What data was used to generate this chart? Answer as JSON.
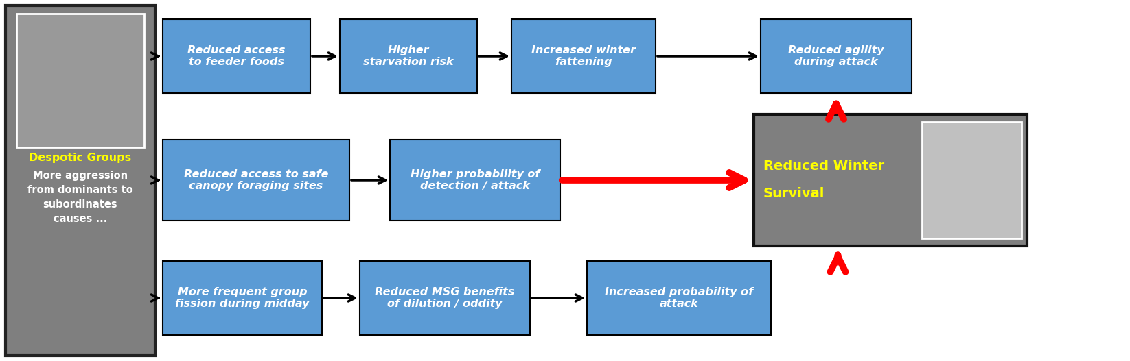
{
  "bg_color": "#ffffff",
  "left_panel_color": "#7f7f7f",
  "left_panel_border": "#222222",
  "box_color": "#5b9bd5",
  "box_border": "#000000",
  "center_box_color": "#7f7f7f",
  "center_box_border": "#111111",
  "text_color_white": "#ffffff",
  "text_color_yellow": "#ffff00",
  "title_label": "Despotic Groups",
  "subtitle_lines": [
    "More aggression",
    "from dominants to",
    "subordinates",
    "causes ..."
  ],
  "row1_texts": [
    "Reduced access\nto feeder foods",
    "Higher\nstarvation risk",
    "Increased winter\nfattening",
    "Reduced agility\nduring attack"
  ],
  "row2_texts": [
    "Reduced access to safe\ncanopy foraging sites",
    "Higher probability of\ndetection / attack"
  ],
  "row3_texts": [
    "More frequent group\nfission during midday",
    "Reduced MSG benefits\nof dilution / oddity",
    "Increased probability of\nattack"
  ],
  "center_text_line1": "Reduced Winter",
  "center_text_line2": "Survival"
}
